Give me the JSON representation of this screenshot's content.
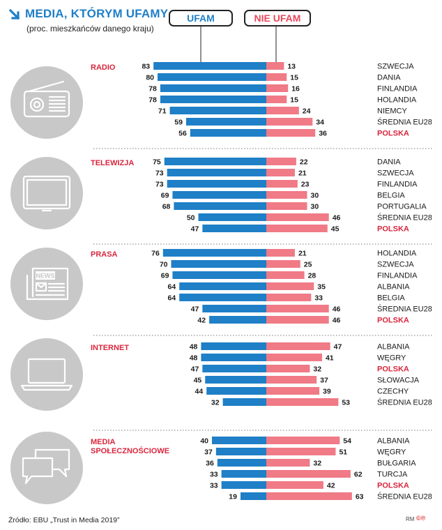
{
  "header": {
    "title": "MEDIA, KTÓRYM UFAMY",
    "subtitle": "(proc. mieszkańców danego kraju)"
  },
  "legend": {
    "trust": "UFAM",
    "distrust": "NIE UFAM"
  },
  "colors": {
    "trust": "#1f7fc7",
    "distrust": "#f07a86",
    "highlight": "#d9263d",
    "icon_circle": "#c8c8c8"
  },
  "footer": {
    "source": "Źródło: EBU „Trust in Media 2019”",
    "credit": "RM"
  },
  "chart_data": {
    "type": "bar",
    "orientation": "diverging-horizontal",
    "series_names": [
      "UFAM",
      "NIE UFAM"
    ],
    "groups": [
      {
        "label": "RADIO",
        "icon": "radio-icon",
        "rows": [
          {
            "country": "SZWECJA",
            "trust": 83,
            "distrust": 13
          },
          {
            "country": "DANIA",
            "trust": 80,
            "distrust": 15
          },
          {
            "country": "FINLANDIA",
            "trust": 78,
            "distrust": 16
          },
          {
            "country": "HOLANDIA",
            "trust": 78,
            "distrust": 15
          },
          {
            "country": "NIEMCY",
            "trust": 71,
            "distrust": 24
          },
          {
            "country": "ŚREDNIA EU28",
            "trust": 59,
            "distrust": 34
          },
          {
            "country": "POLSKA",
            "trust": 56,
            "distrust": 36,
            "highlight": true
          }
        ]
      },
      {
        "label": "TELEWIZJA",
        "icon": "tv-icon",
        "rows": [
          {
            "country": "DANIA",
            "trust": 75,
            "distrust": 22
          },
          {
            "country": "SZWECJA",
            "trust": 73,
            "distrust": 21
          },
          {
            "country": "FINLANDIA",
            "trust": 73,
            "distrust": 23
          },
          {
            "country": "BELGIA",
            "trust": 69,
            "distrust": 30
          },
          {
            "country": "PORTUGALIA",
            "trust": 68,
            "distrust": 30
          },
          {
            "country": "ŚREDNIA EU28",
            "trust": 50,
            "distrust": 46
          },
          {
            "country": "POLSKA",
            "trust": 47,
            "distrust": 45,
            "highlight": true
          }
        ]
      },
      {
        "label": "PRASA",
        "icon": "newspaper-icon",
        "icon_text": "NEWS",
        "rows": [
          {
            "country": "HOLANDIA",
            "trust": 76,
            "distrust": 21
          },
          {
            "country": "SZWECJA",
            "trust": 70,
            "distrust": 25
          },
          {
            "country": "FINLANDIA",
            "trust": 69,
            "distrust": 28
          },
          {
            "country": "ALBANIA",
            "trust": 64,
            "distrust": 35
          },
          {
            "country": "BELGIA",
            "trust": 64,
            "distrust": 33
          },
          {
            "country": "ŚREDNIA EU28",
            "trust": 47,
            "distrust": 46
          },
          {
            "country": "POLSKA",
            "trust": 42,
            "distrust": 46,
            "highlight": true
          }
        ]
      },
      {
        "label": "INTERNET",
        "icon": "laptop-icon",
        "rows": [
          {
            "country": "ALBANIA",
            "trust": 48,
            "distrust": 47
          },
          {
            "country": "WĘGRY",
            "trust": 48,
            "distrust": 41
          },
          {
            "country": "POLSKA",
            "trust": 47,
            "distrust": 32,
            "highlight": true
          },
          {
            "country": "SŁOWACJA",
            "trust": 45,
            "distrust": 37
          },
          {
            "country": "CZECHY",
            "trust": 44,
            "distrust": 39
          },
          {
            "country": "ŚREDNIA EU28",
            "trust": 32,
            "distrust": 53
          }
        ]
      },
      {
        "label": "MEDIA SPOŁECZNOŚCIOWE",
        "label_lines": [
          "MEDIA",
          "SPOŁECZNOŚCIOWE"
        ],
        "icon": "chat-bubbles-icon",
        "rows": [
          {
            "country": "ALBANIA",
            "trust": 40,
            "distrust": 54
          },
          {
            "country": "WĘGRY",
            "trust": 37,
            "distrust": 51
          },
          {
            "country": "BUŁGARIA",
            "trust": 36,
            "distrust": 32
          },
          {
            "country": "TURCJA",
            "trust": 33,
            "distrust": 62
          },
          {
            "country": "POLSKA",
            "trust": 33,
            "distrust": 42,
            "highlight": true
          },
          {
            "country": "ŚREDNIA EU28",
            "trust": 19,
            "distrust": 63
          }
        ]
      }
    ]
  }
}
